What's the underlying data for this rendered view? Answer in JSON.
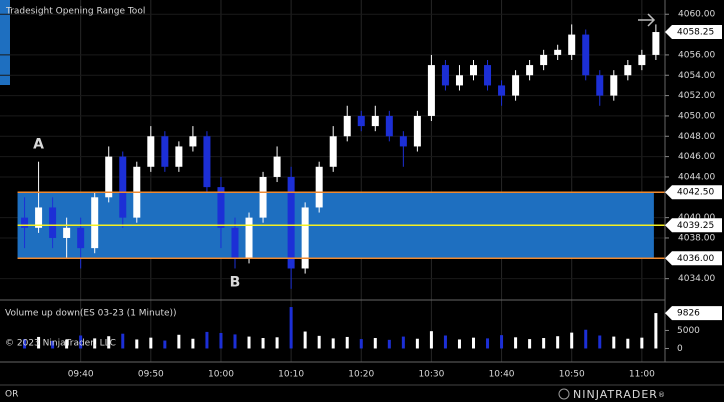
{
  "tool_title": "Tradesight Opening Range Tool",
  "copyright": "© 2023 NinjaTrader, LLC",
  "footer_label": "OR",
  "logo": {
    "text": "NINJATRADER",
    "mark": "®"
  },
  "chart_data": [
    {
      "type": "candlestick",
      "x": [
        572,
        574,
        576,
        578,
        580,
        582,
        584,
        586,
        588,
        590,
        592,
        594,
        596,
        598,
        600,
        602,
        604,
        606,
        608,
        610,
        612,
        614,
        616,
        618,
        620,
        622,
        624,
        626,
        628,
        630,
        632,
        634,
        636,
        638,
        640,
        642,
        644,
        646,
        648,
        650,
        652,
        654,
        656,
        658,
        660,
        662
      ],
      "open": [
        4040,
        4039,
        4041,
        4038,
        4039,
        4037,
        4042,
        4046,
        4040,
        4045,
        4048,
        4045,
        4047,
        4048,
        4043,
        4039,
        4036,
        4040,
        4044,
        4044,
        4035,
        4041,
        4045,
        4048,
        4050,
        4049,
        4050,
        4048,
        4047,
        4050,
        4055,
        4053,
        4054,
        4055,
        4053,
        4052,
        4054,
        4055,
        4056,
        4056,
        4058,
        4054,
        4052,
        4054,
        4055,
        4056
      ],
      "high": [
        4042,
        4045.5,
        4042,
        4040,
        4040,
        4042.5,
        4047,
        4046.5,
        4045.5,
        4049,
        4048.5,
        4047.5,
        4049,
        4048.5,
        4044,
        4040,
        4040.5,
        4044.5,
        4047,
        4045,
        4041.5,
        4045.5,
        4049,
        4051,
        4050.5,
        4051,
        4050.5,
        4048.5,
        4050.5,
        4056,
        4055.5,
        4055,
        4055.5,
        4055.5,
        4053.5,
        4054.5,
        4055.5,
        4056.5,
        4057,
        4059,
        4058.5,
        4054.5,
        4054.5,
        4055.5,
        4056.5,
        4059
      ],
      "low": [
        4037,
        4038.5,
        4037,
        4036,
        4035,
        4036.5,
        4041.5,
        4039,
        4039.5,
        4044.5,
        4044.5,
        4044.5,
        4046.5,
        4042.5,
        4037,
        4035,
        4035.5,
        4039.5,
        4043.5,
        4033,
        4034.5,
        4040.5,
        4044.5,
        4047.5,
        4048.5,
        4048.5,
        4047.5,
        4045,
        4046.5,
        4049.5,
        4052.5,
        4052.5,
        4053.5,
        4052.5,
        4051,
        4051.5,
        4053.5,
        4054.5,
        4055.5,
        4055.5,
        4053.5,
        4051,
        4051.5,
        4053.5,
        4054.5,
        4055.5
      ],
      "close": [
        4039,
        4041,
        4038,
        4039,
        4037,
        4042,
        4046,
        4040,
        4045,
        4048,
        4045,
        4047,
        4048,
        4043,
        4039,
        4036,
        4040,
        4044,
        4046,
        4035,
        4041,
        4045,
        4048,
        4050,
        4049,
        4050,
        4048,
        4047,
        4050,
        4055,
        4053,
        4054,
        4055,
        4053,
        4052,
        4054,
        4055,
        4056,
        4056.5,
        4058,
        4054,
        4052,
        4054,
        4055,
        4056,
        4058.25
      ],
      "up_color": "#ffffff",
      "down_color": "#1c2fd6",
      "xlim": [
        568.5,
        663.3
      ],
      "ylim": [
        4031.9,
        4061.4
      ],
      "xticks": [
        {
          "value": 580,
          "label": "09:40"
        },
        {
          "value": 590,
          "label": "09:50"
        },
        {
          "value": 600,
          "label": "10:00"
        },
        {
          "value": 610,
          "label": "10:10"
        },
        {
          "value": 620,
          "label": "10:20"
        },
        {
          "value": 630,
          "label": "10:30"
        },
        {
          "value": 640,
          "label": "10:40"
        },
        {
          "value": 650,
          "label": "10:50"
        },
        {
          "value": 660,
          "label": "11:00"
        }
      ],
      "yticks": [
        {
          "value": 4034,
          "label": "4034.00"
        },
        {
          "value": 4038,
          "label": "4038.00"
        },
        {
          "value": 4040,
          "label": "4040.00"
        },
        {
          "value": 4044,
          "label": "4044.00"
        },
        {
          "value": 4046,
          "label": "4046.00"
        },
        {
          "value": 4048,
          "label": "4048.00"
        },
        {
          "value": 4050,
          "label": "4050.00"
        },
        {
          "value": 4052,
          "label": "4052.00"
        },
        {
          "value": 4054,
          "label": "4054.00"
        },
        {
          "value": 4056,
          "label": "4056.00"
        },
        {
          "value": 4060,
          "label": "4060.00"
        }
      ],
      "range": {
        "high": {
          "value": 4042.5,
          "label": "4042.50"
        },
        "mid": {
          "value": 4039.25,
          "label": "4039.25"
        },
        "low": {
          "value": 4036,
          "label": "4036.00"
        },
        "fill": "#1e6fc0",
        "edge_color": "#f08a30",
        "mid_color": "#f5f022"
      },
      "annotations": [
        {
          "text": "A",
          "x": 574,
          "y": 4047.2
        },
        {
          "text": "B",
          "x": 602,
          "y": 4033.6
        }
      ]
    },
    {
      "type": "bar",
      "title": "Volume up down(ES 03-23 (1 Minute))",
      "values": [
        2600,
        3200,
        2100,
        2400,
        3600,
        2800,
        3400,
        4100,
        2500,
        3000,
        2200,
        3800,
        2700,
        4600,
        4300,
        3900,
        3300,
        2900,
        3100,
        11500,
        4700,
        3500,
        2800,
        3200,
        2600,
        2900,
        2400,
        3300,
        2700,
        4800,
        3600,
        2500,
        3000,
        2800,
        3700,
        3100,
        2600,
        2900,
        3400,
        4400,
        5200,
        3600,
        3300,
        2700,
        3000,
        9826
      ],
      "ylim": [
        -3200,
        12900
      ],
      "yticks": [
        0,
        5000
      ]
    }
  ]
}
